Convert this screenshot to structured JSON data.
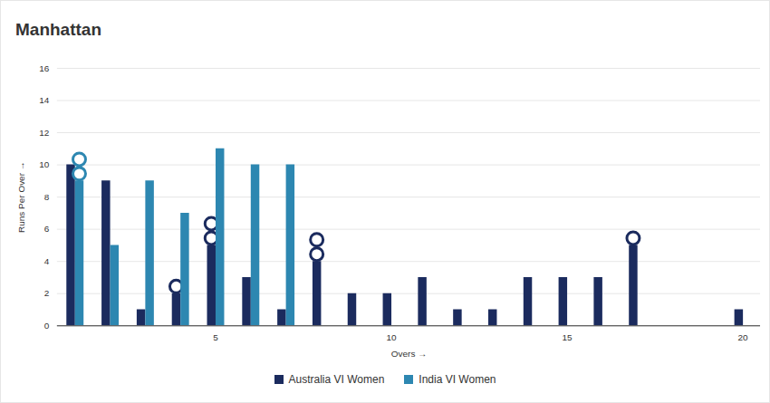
{
  "chart_data": {
    "type": "bar",
    "title": "Manhattan",
    "x_label": "Overs",
    "y_label": "Runs Per Over",
    "x": [
      1,
      2,
      3,
      4,
      5,
      6,
      7,
      8,
      9,
      10,
      11,
      12,
      13,
      14,
      15,
      16,
      17,
      18,
      19,
      20
    ],
    "series": [
      {
        "name": "Australia VI Women",
        "color": "#1b2b5e",
        "values": [
          10,
          9,
          1,
          2,
          5,
          3,
          1,
          4,
          2,
          2,
          3,
          1,
          1,
          3,
          3,
          3,
          5,
          0,
          0,
          1
        ],
        "wickets": [
          0,
          0,
          0,
          1,
          2,
          0,
          0,
          2,
          0,
          0,
          0,
          0,
          0,
          0,
          0,
          0,
          1,
          0,
          0,
          0
        ]
      },
      {
        "name": "India VI Women",
        "color": "#2d87b1",
        "values": [
          9,
          5,
          9,
          7,
          11,
          10,
          10,
          null,
          null,
          null,
          null,
          null,
          null,
          null,
          null,
          null,
          null,
          null,
          null,
          null
        ],
        "wickets": [
          2,
          0,
          0,
          0,
          0,
          0,
          0,
          null,
          null,
          null,
          null,
          null,
          null,
          null,
          null,
          null,
          null,
          null,
          null,
          null
        ]
      }
    ],
    "xlim": [
      0.5,
      20.5
    ],
    "xticks": [
      5,
      10,
      15,
      20
    ],
    "ylim": [
      0,
      16
    ],
    "yticks": [
      0,
      2,
      4,
      6,
      8,
      10,
      12,
      14,
      16
    ],
    "grid": true,
    "legend": "bottom"
  }
}
